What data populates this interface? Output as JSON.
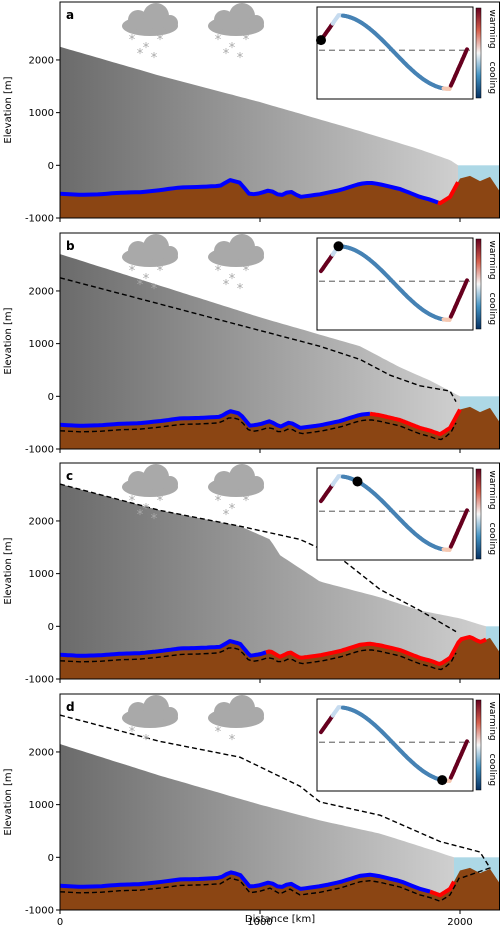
{
  "figure": {
    "ylabel": "Elevation [m]",
    "xlabel": "Distance [km]"
  },
  "inset": {
    "warming_label": "warming",
    "cooling_label": "cooling"
  },
  "colors": {
    "ice_dark": "#6b6b6b",
    "ice_light": "#c8c8c8",
    "bed": "#8b4513",
    "ocean": "#add8e6",
    "cold_bed": "#0000ff",
    "warm_bed": "#ff0000",
    "cloud": "#a9a9a9",
    "snow": "#a9a9a9",
    "marker": "#000000",
    "inset_curve": "#4682b4",
    "inset_hot": "#67001f"
  },
  "chart_data": {
    "type": "area",
    "xlim": [
      0,
      2200
    ],
    "ylim": [
      -1000,
      3100
    ],
    "xticks": [
      0,
      1000,
      2000
    ],
    "yticks": [
      -1000,
      0,
      1000,
      2000
    ],
    "bed": {
      "x": [
        0,
        100,
        200,
        300,
        400,
        500,
        600,
        700,
        800,
        850,
        900,
        950,
        1000,
        1050,
        1100,
        1150,
        1200,
        1300,
        1400,
        1500,
        1550,
        1600,
        1700,
        1800,
        1850,
        1900,
        1950,
        2000,
        2050,
        2100,
        2150,
        2200
      ],
      "y": [
        -540,
        -560,
        -550,
        -520,
        -510,
        -470,
        -420,
        -410,
        -390,
        -280,
        -330,
        -560,
        -530,
        -470,
        -580,
        -490,
        -600,
        -550,
        -470,
        -350,
        -330,
        -360,
        -450,
        -600,
        -650,
        -720,
        -600,
        -250,
        -200,
        -300,
        -220,
        -500
      ]
    },
    "ocean_level": 0,
    "panels": [
      {
        "letter": "a",
        "surface": {
          "x": [
            0,
            500,
            1000,
            1500,
            1800,
            1950,
            1990
          ],
          "y": [
            2250,
            1700,
            1200,
            650,
            300,
            100,
            0
          ]
        },
        "cold_bed_x": [
          0,
          1890
        ],
        "warm_bed_x": [
          1890,
          1990
        ],
        "terminus_x": 1990,
        "dashed": null,
        "clouds": [
          {
            "x": 450,
            "snow": 5
          },
          {
            "x": 880,
            "snow": 5
          }
        ],
        "inset_marker": 0.0
      },
      {
        "letter": "b",
        "surface": {
          "x": [
            0,
            500,
            1000,
            1500,
            1700,
            1850,
            1950,
            2000
          ],
          "y": [
            2700,
            2100,
            1500,
            950,
            550,
            300,
            100,
            0
          ]
        },
        "cold_bed_x": [
          0,
          1550
        ],
        "warm_bed_x": [
          1550,
          2000
        ],
        "terminus_x": 2000,
        "dashed": {
          "x": [
            0,
            500,
            1000,
            1300,
            1500,
            1650,
            1800,
            1950,
            1980
          ],
          "y": [
            2250,
            1750,
            1250,
            950,
            700,
            400,
            200,
            100,
            -100
          ]
        },
        "clouds": [
          {
            "x": 450,
            "snow": 5
          },
          {
            "x": 880,
            "snow": 5
          }
        ],
        "inset_marker": 0.12
      },
      {
        "letter": "c",
        "surface": {
          "x": [
            0,
            500,
            900,
            1050,
            1100,
            1300,
            1600,
            1800,
            2000,
            2130
          ],
          "y": [
            2700,
            2200,
            1900,
            1650,
            1350,
            850,
            550,
            300,
            150,
            0
          ]
        },
        "cold_bed_x": [
          0,
          1030
        ],
        "warm_bed_x": [
          1030,
          2130
        ],
        "terminus_x": 2130,
        "dashed": {
          "x": [
            0,
            500,
            900,
            1200,
            1400,
            1600,
            1800,
            1980
          ],
          "y": [
            2700,
            2200,
            1900,
            1650,
            1300,
            700,
            300,
            -100
          ]
        },
        "clouds": [
          {
            "x": 450,
            "snow": 5
          },
          {
            "x": 880,
            "snow": 4
          }
        ],
        "inset_marker": 0.25
      },
      {
        "letter": "d",
        "surface": {
          "x": [
            0,
            500,
            1000,
            1300,
            1600,
            1850,
            1970
          ],
          "y": [
            2150,
            1550,
            1000,
            700,
            450,
            150,
            0
          ]
        },
        "cold_bed_x": [
          0,
          1850
        ],
        "warm_bed_x": [
          1850,
          1970
        ],
        "terminus_x": 1970,
        "dashed": {
          "x": [
            0,
            500,
            900,
            1200,
            1300,
            1600,
            1900,
            2100,
            2150,
            2000
          ],
          "y": [
            2700,
            2200,
            1900,
            1350,
            1050,
            800,
            300,
            100,
            -200,
            -400
          ]
        },
        "clouds": [
          {
            "x": 450,
            "snow": 2
          },
          {
            "x": 880,
            "snow": 2
          }
        ],
        "inset_marker": 0.83
      }
    ]
  }
}
